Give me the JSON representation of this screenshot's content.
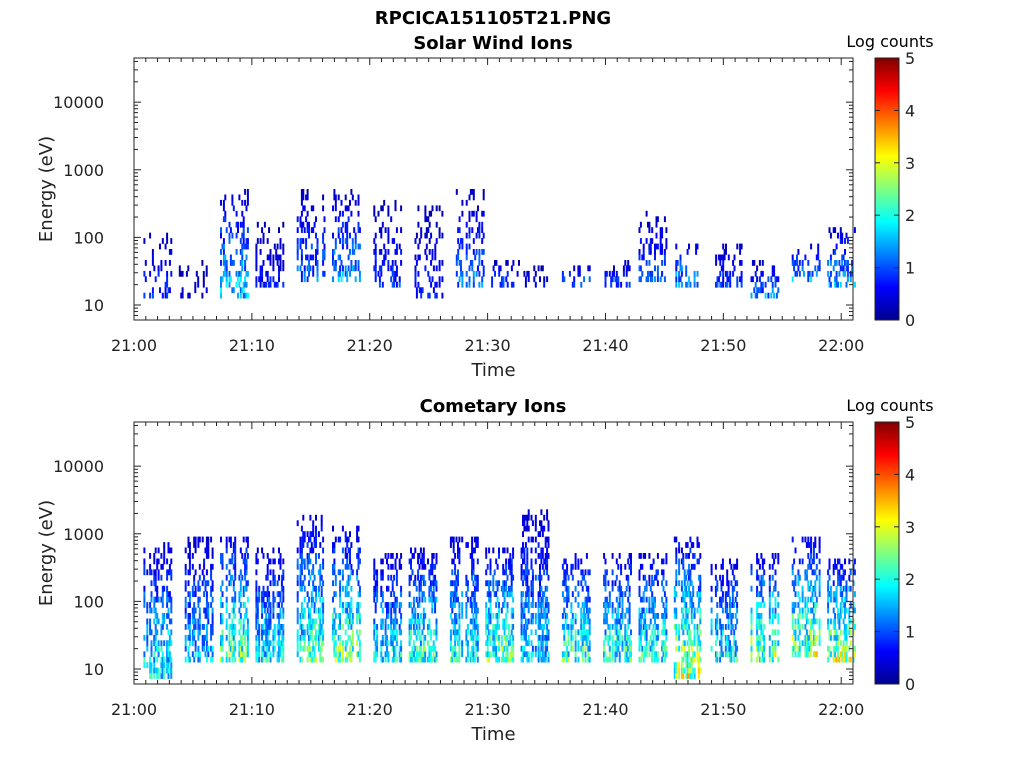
{
  "figure": {
    "title": "RPCICA151105T21.PNG"
  },
  "colors": {
    "colormap": [
      "#00008f",
      "#0000ff",
      "#0080ff",
      "#00ffff",
      "#80ff80",
      "#ffff00",
      "#ff8000",
      "#ff0000",
      "#800000"
    ]
  },
  "chart_data": [
    {
      "type": "heatmap",
      "title": "Solar Wind Ions",
      "xlabel": "Time",
      "ylabel": "Energy (eV)",
      "x_range": [
        "21:00",
        "22:01"
      ],
      "ylim": [
        6,
        45000
      ],
      "yscale": "log",
      "x_ticks": [
        "21:00",
        "21:10",
        "21:20",
        "21:30",
        "21:40",
        "21:50",
        "22:00"
      ],
      "y_ticks": [
        10,
        100,
        1000,
        10000
      ],
      "colorbar": {
        "label": "Log counts",
        "range": [
          0,
          5
        ],
        "ticks": [
          0,
          1,
          2,
          3,
          4,
          5
        ]
      },
      "bursts": [
        {
          "time": "21:02",
          "energy_range": [
            12,
            110
          ],
          "peak_log_counts": 1.2
        },
        {
          "time": "21:05",
          "energy_range": [
            12,
            40
          ],
          "peak_log_counts": 0.6
        },
        {
          "time": "21:08.5",
          "energy_range": [
            12,
            450
          ],
          "peak_log_counts": 2.3
        },
        {
          "time": "21:11.5",
          "energy_range": [
            18,
            170
          ],
          "peak_log_counts": 0.9
        },
        {
          "time": "21:15",
          "energy_range": [
            20,
            450
          ],
          "peak_log_counts": 1.6
        },
        {
          "time": "21:18",
          "energy_range": [
            20,
            500
          ],
          "peak_log_counts": 1.9
        },
        {
          "time": "21:21.5",
          "energy_range": [
            18,
            300
          ],
          "peak_log_counts": 1.2
        },
        {
          "time": "21:25",
          "energy_range": [
            12,
            250
          ],
          "peak_log_counts": 1.0
        },
        {
          "time": "21:28.5",
          "energy_range": [
            18,
            500
          ],
          "peak_log_counts": 1.6
        },
        {
          "time": "21:31.5",
          "energy_range": [
            18,
            40
          ],
          "peak_log_counts": 1.4
        },
        {
          "time": "21:34",
          "energy_range": [
            18,
            35
          ],
          "peak_log_counts": 0.8
        },
        {
          "time": "21:37.5",
          "energy_range": [
            18,
            40
          ],
          "peak_log_counts": 1.5
        },
        {
          "time": "21:41",
          "energy_range": [
            18,
            40
          ],
          "peak_log_counts": 1.3
        },
        {
          "time": "21:44",
          "energy_range": [
            22,
            210
          ],
          "peak_log_counts": 1.4
        },
        {
          "time": "21:47",
          "energy_range": [
            18,
            80
          ],
          "peak_log_counts": 2.0
        },
        {
          "time": "21:50.5",
          "energy_range": [
            18,
            80
          ],
          "peak_log_counts": 1.2
        },
        {
          "time": "21:53.5",
          "energy_range": [
            12,
            40
          ],
          "peak_log_counts": 1.8
        },
        {
          "time": "21:57",
          "energy_range": [
            22,
            80
          ],
          "peak_log_counts": 1.9
        },
        {
          "time": "22:00",
          "energy_range": [
            18,
            130
          ],
          "peak_log_counts": 2.0
        }
      ]
    },
    {
      "type": "heatmap",
      "title": "Cometary Ions",
      "xlabel": "Time",
      "ylabel": "Energy (eV)",
      "x_range": [
        "21:00",
        "22:01"
      ],
      "ylim": [
        6,
        45000
      ],
      "yscale": "log",
      "x_ticks": [
        "21:00",
        "21:10",
        "21:20",
        "21:30",
        "21:40",
        "21:50",
        "22:00"
      ],
      "y_ticks": [
        10,
        100,
        1000,
        10000
      ],
      "colorbar": {
        "label": "Log counts",
        "range": [
          0,
          5
        ],
        "ticks": [
          0,
          1,
          2,
          3,
          4,
          5
        ]
      },
      "bursts": [
        {
          "time": "21:02",
          "energy_range": [
            7,
            650
          ],
          "peak_log_counts": 2.6
        },
        {
          "time": "21:05.5",
          "energy_range": [
            12,
            900
          ],
          "peak_log_counts": 2.1
        },
        {
          "time": "21:08.5",
          "energy_range": [
            12,
            900
          ],
          "peak_log_counts": 3.2
        },
        {
          "time": "21:11.5",
          "energy_range": [
            12,
            600
          ],
          "peak_log_counts": 2.5
        },
        {
          "time": "21:15",
          "energy_range": [
            12,
            1600
          ],
          "peak_log_counts": 3.0
        },
        {
          "time": "21:18",
          "energy_range": [
            12,
            1100
          ],
          "peak_log_counts": 3.3
        },
        {
          "time": "21:21.5",
          "energy_range": [
            12,
            500
          ],
          "peak_log_counts": 2.5
        },
        {
          "time": "21:24.5",
          "energy_range": [
            12,
            550
          ],
          "peak_log_counts": 3.0
        },
        {
          "time": "21:28",
          "energy_range": [
            12,
            900
          ],
          "peak_log_counts": 2.6
        },
        {
          "time": "21:31",
          "energy_range": [
            12,
            600
          ],
          "peak_log_counts": 3.2
        },
        {
          "time": "21:34",
          "energy_range": [
            12,
            2000
          ],
          "peak_log_counts": 2.2
        },
        {
          "time": "21:37.5",
          "energy_range": [
            12,
            500
          ],
          "peak_log_counts": 3.0
        },
        {
          "time": "21:41",
          "energy_range": [
            12,
            500
          ],
          "peak_log_counts": 2.9
        },
        {
          "time": "21:44",
          "energy_range": [
            12,
            500
          ],
          "peak_log_counts": 2.8
        },
        {
          "time": "21:47",
          "energy_range": [
            7,
            800
          ],
          "peak_log_counts": 3.6
        },
        {
          "time": "21:50",
          "energy_range": [
            12,
            400
          ],
          "peak_log_counts": 2.6
        },
        {
          "time": "21:53.5",
          "energy_range": [
            12,
            450
          ],
          "peak_log_counts": 3.5
        },
        {
          "time": "21:57",
          "energy_range": [
            15,
            900
          ],
          "peak_log_counts": 3.5
        },
        {
          "time": "22:00",
          "energy_range": [
            12,
            400
          ],
          "peak_log_counts": 3.7
        }
      ]
    }
  ]
}
